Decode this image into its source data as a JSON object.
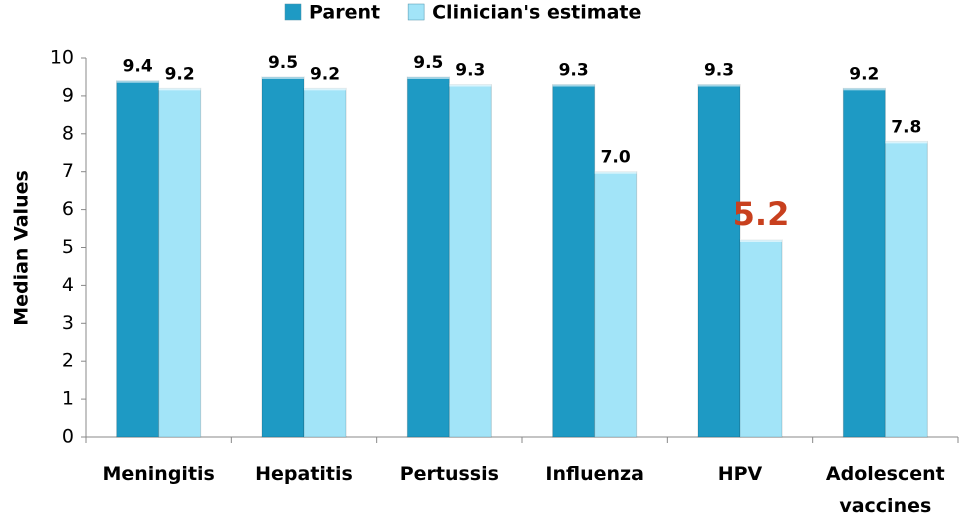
{
  "chart_data": {
    "type": "bar",
    "y_label": "Median Values",
    "categories": [
      "Meningitis",
      "Hepatitis",
      "Pertussis",
      "Influenza",
      "HPV",
      "Adolescent vaccines"
    ],
    "series": [
      {
        "name": "Parent",
        "color": "#1e9ac4",
        "values": [
          9.4,
          9.5,
          9.5,
          9.3,
          9.3,
          9.2
        ],
        "value_labels": [
          "9.4",
          "9.5",
          "9.5",
          "9.3",
          "9.3",
          "9.2"
        ],
        "value_label_colors": [
          "#000000",
          "#000000",
          "#000000",
          "#000000",
          "#000000",
          "#000000"
        ]
      },
      {
        "name": "Clinician's estimate",
        "color": "#a2e4f8",
        "values": [
          9.2,
          9.2,
          9.3,
          7,
          5.2,
          7.8
        ],
        "value_labels": [
          "9.2",
          "9.2",
          "9.3",
          "7.0",
          "5.2",
          "7.8"
        ],
        "value_label_colors": [
          "#000000",
          "#000000",
          "#000000",
          "#000000",
          "#c8401e",
          "#000000"
        ]
      }
    ],
    "ylim": [
      0,
      10
    ],
    "yticks": [
      0,
      1,
      2,
      3,
      4,
      5,
      6,
      7,
      8,
      9,
      10
    ],
    "grid": false,
    "legend": "top"
  }
}
